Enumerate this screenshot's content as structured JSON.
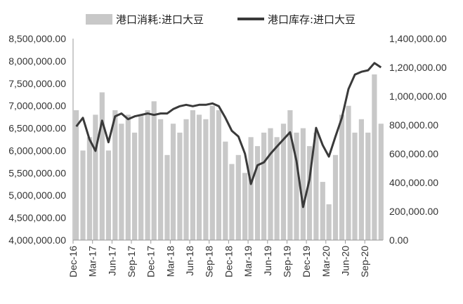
{
  "chart_data": {
    "type": "bar+line",
    "title": "",
    "legend_position": "top",
    "legend": [
      "港口消耗:进口大豆",
      "港口库存:进口大豆"
    ],
    "left_axis": {
      "ylim": [
        4000000,
        8500000
      ],
      "ticks": [
        "4,000,000.00",
        "4,500,000.00",
        "5,000,000.00",
        "5,500,000.00",
        "6,000,000.00",
        "6,500,000.00",
        "7,000,000.00",
        "7,500,000.00",
        "8,000,000.00",
        "8,500,000.00"
      ]
    },
    "right_axis": {
      "ylim": [
        0,
        1400000
      ],
      "ticks": [
        "0.00",
        "200,000.00",
        "400,000.00",
        "600,000.00",
        "800,000.00",
        "1,000,000.00",
        "1,200,000.00",
        "1,400,000.00"
      ]
    },
    "x_axis": {
      "range": [
        "2016-12",
        "2020-11"
      ],
      "ticks": [
        "Dec-16",
        "Mar-17",
        "Jun-17",
        "Sep-17",
        "Dec-17",
        "Mar-18",
        "Jun-18",
        "Sep-18",
        "Dec-18",
        "Mar-19",
        "Jun-19",
        "Sep-19",
        "Dec-19",
        "Mar-20",
        "Jun-20",
        "Sep-20"
      ]
    },
    "colors": {
      "bars": "#c8c8c8",
      "line": "#3a3a3a",
      "axis": "#999999"
    },
    "series": [
      {
        "name": "港口消耗:进口大豆",
        "kind": "bar",
        "axis": "left",
        "unit": "month",
        "x": [
          "2016-12",
          "2017-01",
          "2017-02",
          "2017-03",
          "2017-04",
          "2017-05",
          "2017-06",
          "2017-07",
          "2017-08",
          "2017-09",
          "2017-10",
          "2017-11",
          "2017-12",
          "2018-01",
          "2018-02",
          "2018-03",
          "2018-04",
          "2018-05",
          "2018-06",
          "2018-07",
          "2018-08",
          "2018-09",
          "2018-10",
          "2018-11",
          "2018-12",
          "2019-01",
          "2019-02",
          "2019-03",
          "2019-04",
          "2019-05",
          "2019-06",
          "2019-07",
          "2019-08",
          "2019-09",
          "2019-10",
          "2019-11",
          "2019-12",
          "2020-01",
          "2020-02",
          "2020-03",
          "2020-04",
          "2020-05",
          "2020-06",
          "2020-07",
          "2020-08",
          "2020-09",
          "2020-10",
          "2020-11"
        ],
        "values": [
          6900000,
          6000000,
          6300000,
          6800000,
          7300000,
          6000000,
          6900000,
          6600000,
          6800000,
          6400000,
          6800000,
          6900000,
          7100000,
          6700000,
          5900000,
          6600000,
          6400000,
          6700000,
          6900000,
          6800000,
          6700000,
          7000000,
          6900000,
          6200000,
          5700000,
          5900000,
          5500000,
          6300000,
          6100000,
          6400000,
          6500000,
          6300000,
          6600000,
          6900000,
          6400000,
          6500000,
          6100000,
          6400000,
          5300000,
          4800000,
          5900000,
          6800000,
          7000000,
          6400000,
          6700000,
          6400000,
          7700000,
          6600000
        ]
      },
      {
        "name": "港口库存:进口大豆",
        "kind": "line",
        "axis": "right",
        "unit": "week",
        "x": [
          "2016-12",
          "2017-01",
          "2017-02",
          "2017-03",
          "2017-04",
          "2017-05",
          "2017-06",
          "2017-07",
          "2017-08",
          "2017-09",
          "2017-10",
          "2017-11",
          "2017-12",
          "2018-01",
          "2018-02",
          "2018-03",
          "2018-04",
          "2018-05",
          "2018-06",
          "2018-07",
          "2018-08",
          "2018-09",
          "2018-10",
          "2018-11",
          "2018-12",
          "2019-01",
          "2019-02",
          "2019-03",
          "2019-04",
          "2019-05",
          "2019-06",
          "2019-07",
          "2019-08",
          "2019-09",
          "2019-10",
          "2019-11",
          "2019-12",
          "2020-01",
          "2020-02",
          "2020-03",
          "2020-04",
          "2020-05",
          "2020-06",
          "2020-07",
          "2020-08",
          "2020-09",
          "2020-10",
          "2020-11"
        ],
        "values": [
          790000,
          850000,
          700000,
          620000,
          830000,
          680000,
          860000,
          880000,
          840000,
          860000,
          870000,
          880000,
          870000,
          880000,
          880000,
          910000,
          930000,
          940000,
          930000,
          940000,
          940000,
          950000,
          930000,
          850000,
          760000,
          720000,
          600000,
          390000,
          520000,
          540000,
          600000,
          650000,
          700000,
          750000,
          550000,
          230000,
          420000,
          780000,
          660000,
          580000,
          720000,
          850000,
          1050000,
          1150000,
          1170000,
          1180000,
          1230000,
          1200000
        ]
      }
    ]
  }
}
